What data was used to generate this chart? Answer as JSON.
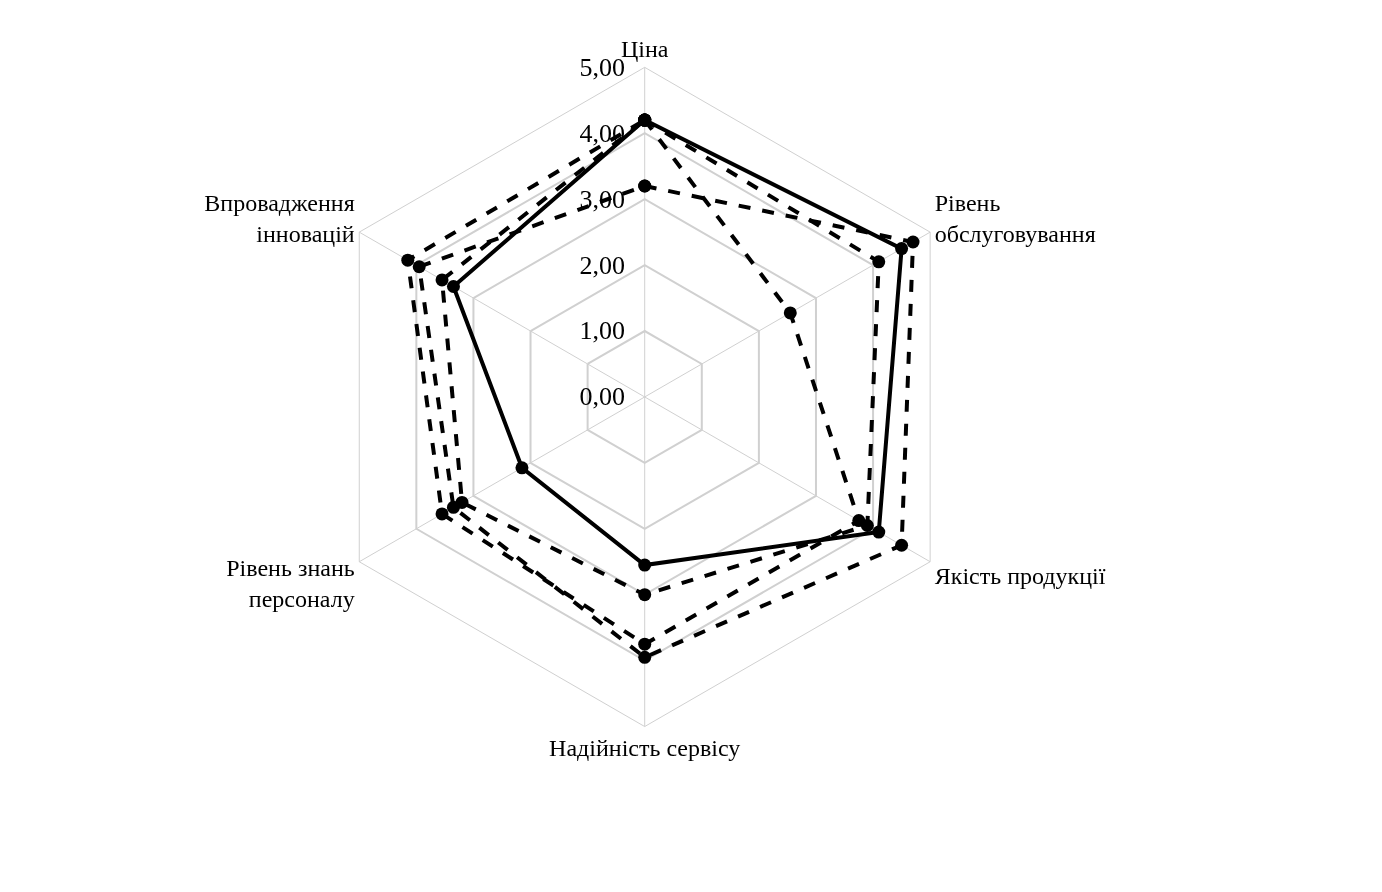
{
  "chart_data": {
    "type": "radar",
    "categories": [
      "Ціна",
      "Рівень\nобслуговування",
      "Якість продукції",
      "Надійність сервісу",
      "Рівень знань\nперсоналу",
      "Впровадження\nінновацій"
    ],
    "series": [
      {
        "color": "#000000",
        "line_style": "dashed",
        "values": [
          3.2,
          4.7,
          4.5,
          3.95,
          3.35,
          3.95
        ]
      },
      {
        "color": "#000000",
        "line_style": "dashed",
        "values": [
          4.2,
          2.55,
          3.75,
          3.75,
          3.55,
          4.15
        ]
      },
      {
        "color": "#000000",
        "line_style": "solid",
        "values": [
          4.2,
          4.5,
          4.1,
          2.55,
          2.15,
          3.35
        ]
      },
      {
        "color": "#000000",
        "line_style": "dashed",
        "values": [
          4.2,
          4.1,
          3.9,
          3.0,
          3.2,
          3.55
        ]
      }
    ],
    "ylim": [
      0,
      5
    ],
    "yticks": [
      {
        "value": 0,
        "label": "0,00"
      },
      {
        "value": 1,
        "label": "1,00"
      },
      {
        "value": 2,
        "label": "2,00"
      },
      {
        "value": 3,
        "label": "3,00"
      },
      {
        "value": 4,
        "label": "4,00"
      },
      {
        "value": 5,
        "label": "5,00"
      }
    ],
    "grid": true,
    "marker": "circle"
  }
}
